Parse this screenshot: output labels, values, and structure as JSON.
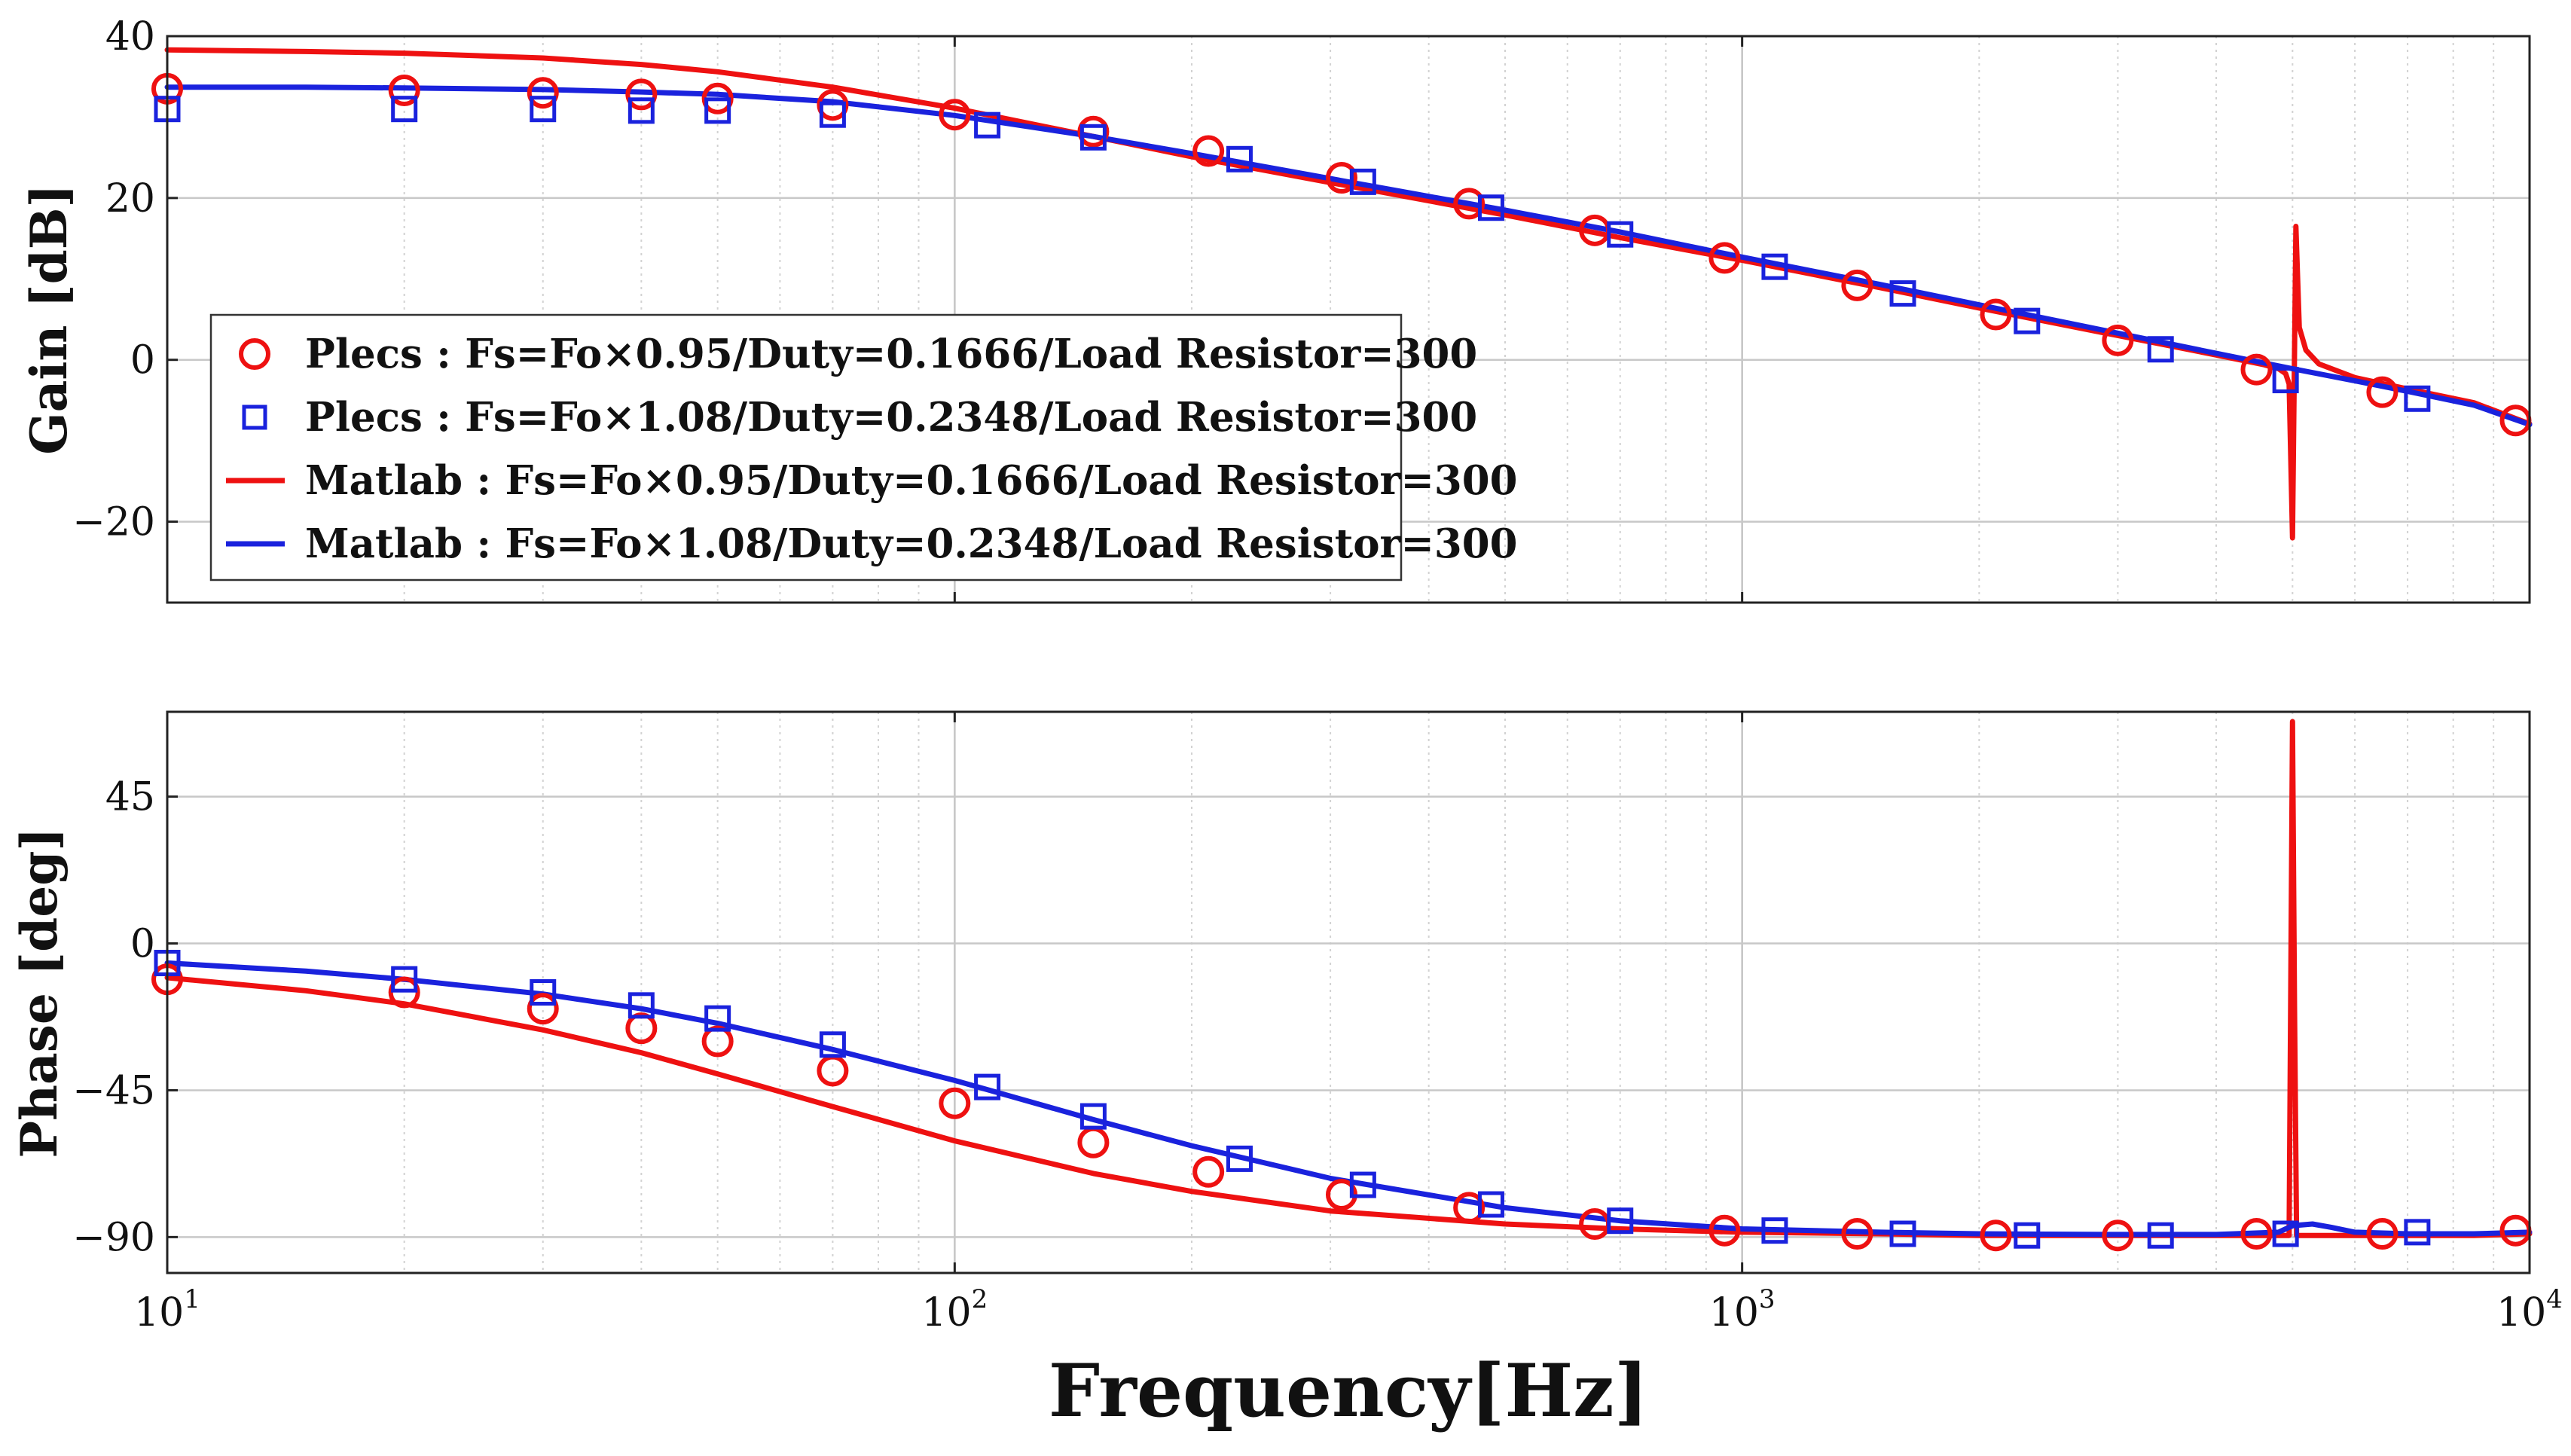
{
  "chart_data": {
    "type": "line",
    "xlabel": "Frequency[Hz]",
    "x_scale": "log",
    "xlim": [
      10,
      10000
    ],
    "x_ticks": [
      10,
      100,
      1000,
      10000
    ],
    "x_tick_labels": [
      {
        "base": "10",
        "exp": "1"
      },
      {
        "base": "10",
        "exp": "2"
      },
      {
        "base": "10",
        "exp": "3"
      },
      {
        "base": "10",
        "exp": "4"
      }
    ],
    "grid": true,
    "legend": {
      "placement": "left (gain panel)",
      "entries": [
        "Plecs : Fs=Fo×0.95/Duty=0.1666/Load Resistor=300",
        "Plecs : Fs=Fo×1.08/Duty=0.2348/Load Resistor=300",
        "Matlab : Fs=Fo×0.95/Duty=0.1666/Load Resistor=300",
        "Matlab : Fs=Fo×1.08/Duty=0.2348/Load Resistor=300"
      ]
    },
    "panels": [
      {
        "name": "gain",
        "ylabel": "Gain [dB]",
        "ylim": [
          -30,
          40
        ],
        "yticks": [
          40,
          20,
          0,
          -20
        ],
        "ytick_labels": [
          "40",
          "20",
          "0",
          "−20"
        ],
        "series": [
          {
            "name": "Plecs : Fs=Fo×0.95/Duty=0.1666/Load Resistor=300",
            "color": "#ee1111",
            "marker": "circle",
            "x": [
              10,
              20,
              30,
              40,
              50,
              70,
              100,
              150,
              210,
              310,
              450,
              650,
              950,
              1400,
              2100,
              3000,
              4500,
              6500,
              9600
            ],
            "y": [
              33.5,
              33.3,
              33.0,
              32.8,
              32.3,
              31.5,
              30.3,
              28.2,
              25.8,
              22.5,
              19.3,
              16.0,
              12.6,
              9.2,
              5.6,
              2.4,
              -1.2,
              -4.0,
              -7.5
            ]
          },
          {
            "name": "Plecs : Fs=Fo×1.08/Duty=0.2348/Load Resistor=300",
            "color": "#1a22dd",
            "marker": "square",
            "x": [
              10,
              20,
              30,
              40,
              50,
              70,
              110,
              150,
              230,
              330,
              480,
              700,
              1100,
              1600,
              2300,
              3400,
              4900,
              7200
            ],
            "y": [
              31.0,
              31.0,
              31.0,
              30.8,
              30.8,
              30.3,
              29.0,
              27.5,
              24.8,
              22.0,
              18.8,
              15.5,
              11.5,
              8.2,
              4.8,
              1.3,
              -2.5,
              -4.8
            ]
          },
          {
            "name": "Matlab : Fs=Fo×0.95/Duty=0.1666/Load Resistor=300",
            "color": "#ee1111",
            "marker": "line",
            "x": [
              10,
              15,
              20,
              30,
              40,
              50,
              70,
              100,
              150,
              200,
              300,
              500,
              700,
              1000,
              1500,
              2000,
              3000,
              4000,
              4600,
              4800,
              4900,
              4950,
              5000,
              5050,
              5100,
              5200,
              5400,
              6000,
              7000,
              8500,
              10000
            ],
            "y": [
              38.3,
              38.1,
              37.9,
              37.3,
              36.5,
              35.6,
              33.7,
              31.1,
              27.6,
              25.1,
              21.9,
              17.9,
              15.1,
              12.3,
              8.9,
              6.4,
              3.0,
              0.6,
              -0.6,
              -1.1,
              -1.7,
              -3.0,
              -22.0,
              16.5,
              4.0,
              1.2,
              -0.5,
              -2.2,
              -3.6,
              -5.3,
              -7.9
            ]
          },
          {
            "name": "Matlab : Fs=Fo×1.08/Duty=0.2348/Load Resistor=300",
            "color": "#1a22dd",
            "marker": "line",
            "x": [
              10,
              15,
              20,
              30,
              40,
              50,
              70,
              100,
              150,
              200,
              300,
              500,
              700,
              1000,
              1500,
              2000,
              3000,
              4000,
              5000,
              6000,
              7000,
              8500,
              10000
            ],
            "y": [
              33.7,
              33.7,
              33.6,
              33.4,
              33.1,
              32.8,
              31.9,
              30.2,
              27.6,
              25.5,
              22.4,
              18.5,
              15.8,
              12.7,
              9.3,
              6.8,
              3.3,
              0.8,
              -1.1,
              -2.6,
              -3.9,
              -5.6,
              -8.0
            ]
          }
        ]
      },
      {
        "name": "phase",
        "ylabel": "Phase [deg]",
        "ylim": [
          -101,
          71
        ],
        "yticks": [
          45,
          0,
          -45,
          -90
        ],
        "ytick_labels": [
          "45",
          "0",
          "−45",
          "−90"
        ],
        "series": [
          {
            "name": "Plecs : Fs=Fo×0.95/Duty=0.1666/Load Resistor=300",
            "color": "#ee1111",
            "marker": "circle",
            "x": [
              10,
              20,
              30,
              40,
              50,
              70,
              100,
              150,
              210,
              310,
              450,
              650,
              950,
              1400,
              2100,
              3000,
              4500,
              6500,
              9600
            ],
            "y": [
              -11,
              -15,
              -20,
              -26,
              -30,
              -39,
              -49,
              -61,
              -70,
              -77,
              -81,
              -86,
              -88,
              -89,
              -89.5,
              -89.5,
              -89,
              -89,
              -88
            ]
          },
          {
            "name": "Plecs : Fs=Fo×1.08/Duty=0.2348/Load Resistor=300",
            "color": "#1a22dd",
            "marker": "square",
            "x": [
              10,
              20,
              30,
              40,
              50,
              70,
              110,
              150,
              230,
              330,
              480,
              700,
              1100,
              1600,
              2300,
              3400,
              4900,
              7200
            ],
            "y": [
              -6,
              -11,
              -15,
              -19,
              -23,
              -31,
              -44,
              -53,
              -66,
              -74,
              -80,
              -85,
              -88,
              -89,
              -89.5,
              -89.5,
              -89,
              -88.5
            ]
          },
          {
            "name": "Matlab : Fs=Fo×0.95/Duty=0.1666/Load Resistor=300",
            "color": "#ee1111",
            "marker": "line",
            "x": [
              10,
              15,
              20,
              30,
              40,
              50,
              70,
              100,
              150,
              200,
              300,
              500,
              700,
              1000,
              1500,
              2000,
              3000,
              4000,
              4800,
              4950,
              5000,
              5030,
              5060,
              5100,
              5200,
              6000,
              7000,
              8500,
              10000
            ],
            "y": [
              -10.5,
              -14.5,
              -18.5,
              -26.5,
              -33.5,
              -40,
              -50,
              -60.5,
              -70.5,
              -76,
              -82,
              -86,
              -87.5,
              -88.5,
              -89,
              -89.5,
              -89.5,
              -89.5,
              -89.5,
              -89.5,
              68,
              -20,
              -89.5,
              -89.5,
              -89.5,
              -89.5,
              -89.5,
              -89.5,
              -89
            ]
          },
          {
            "name": "Matlab : Fs=Fo×1.08/Duty=0.2348/Load Resistor=300",
            "color": "#1a22dd",
            "marker": "line",
            "x": [
              10,
              15,
              20,
              30,
              40,
              50,
              70,
              100,
              150,
              200,
              300,
              500,
              700,
              1000,
              1500,
              2000,
              3000,
              4000,
              4800,
              5000,
              5300,
              5600,
              6000,
              7000,
              8500,
              10000
            ],
            "y": [
              -6,
              -8.5,
              -11,
              -15.5,
              -20,
              -24.5,
              -32.5,
              -42,
              -54,
              -62,
              -72,
              -81,
              -85,
              -87.5,
              -88.5,
              -89,
              -89.2,
              -89.2,
              -88.5,
              -86.5,
              -86,
              -87,
              -88.5,
              -89,
              -89,
              -88.5
            ]
          }
        ]
      }
    ]
  }
}
